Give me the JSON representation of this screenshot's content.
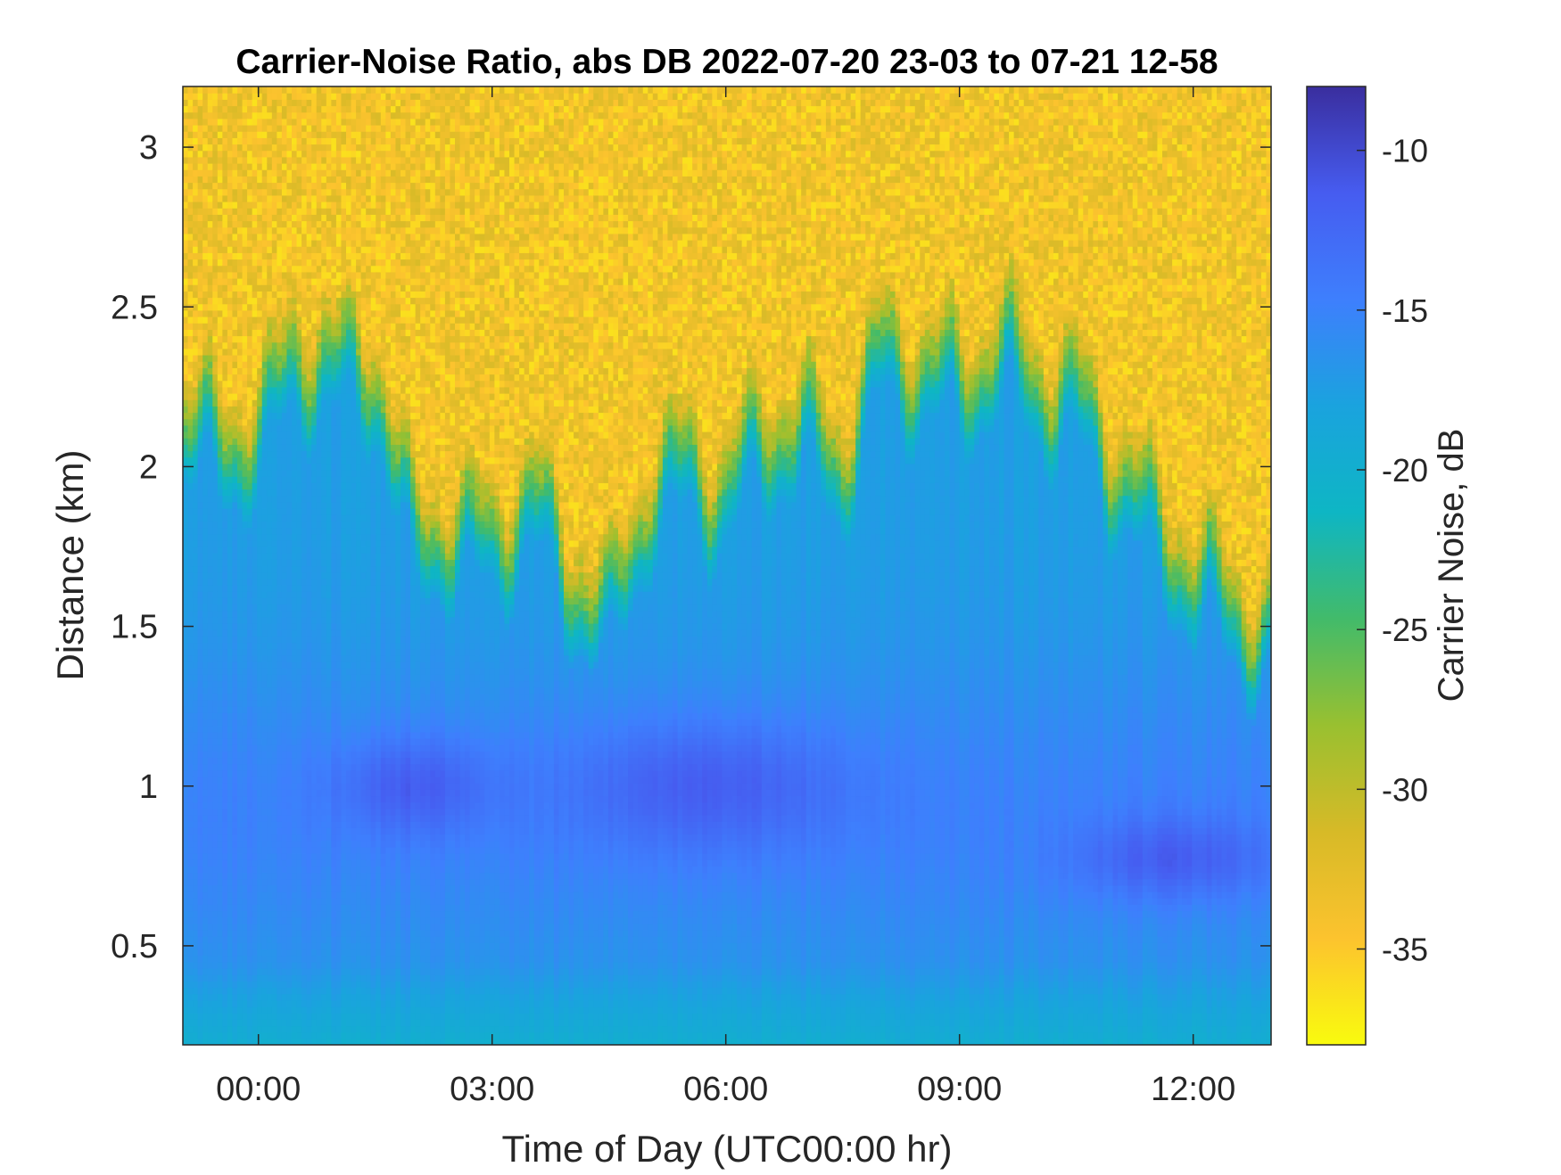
{
  "chart_data": {
    "type": "heatmap",
    "title": "Carrier-Noise Ratio, abs DB 2022-07-20 23-03 to 07-21 12-58",
    "xlabel": "Time of Day (UTC00:00 hr)",
    "ylabel": "Distance (km)",
    "colorbar_label": "Carrier Noise, dB",
    "x_range_hours": [
      -0.97,
      13.0
    ],
    "y_range_km": [
      0.19,
      3.19
    ],
    "color_range_db": [
      -38,
      -8
    ],
    "colormap": "parula (reversed)",
    "x_ticks": [
      {
        "value": 0,
        "label": "00:00"
      },
      {
        "value": 3,
        "label": "03:00"
      },
      {
        "value": 6,
        "label": "06:00"
      },
      {
        "value": 9,
        "label": "09:00"
      },
      {
        "value": 12,
        "label": "12:00"
      }
    ],
    "y_ticks": [
      {
        "value": 0.5,
        "label": "0.5"
      },
      {
        "value": 1,
        "label": "1"
      },
      {
        "value": 1.5,
        "label": "1.5"
      },
      {
        "value": 2,
        "label": "2"
      },
      {
        "value": 2.5,
        "label": "2.5"
      },
      {
        "value": 3,
        "label": "3"
      }
    ],
    "colorbar_ticks": [
      {
        "value": -10,
        "label": "-10"
      },
      {
        "value": -15,
        "label": "-15"
      },
      {
        "value": -20,
        "label": "-20"
      },
      {
        "value": -25,
        "label": "-25"
      },
      {
        "value": -30,
        "label": "-30"
      },
      {
        "value": -35,
        "label": "-35"
      }
    ],
    "colormap_stops": [
      "#f9fb0e",
      "#fcc32e",
      "#d7ba27",
      "#99c030",
      "#42bb6a",
      "#0eb6c4",
      "#1aa3de",
      "#3e7ffd",
      "#465cf0",
      "#3a2e9e"
    ],
    "time_hours": [
      -0.97,
      -0.5,
      0,
      0.5,
      1,
      1.5,
      2,
      2.5,
      3,
      3.5,
      4,
      4.5,
      5,
      5.5,
      6,
      6.5,
      7,
      7.5,
      8,
      8.5,
      9,
      9.5,
      10,
      10.5,
      11,
      11.5,
      12,
      12.5,
      13
    ],
    "boundary_layer_top_km": [
      2.35,
      2.25,
      2.3,
      2.55,
      2.5,
      2.5,
      1.95,
      2.0,
      1.95,
      2.1,
      1.85,
      1.7,
      2.1,
      2.2,
      2.1,
      2.3,
      2.3,
      2.2,
      2.55,
      2.5,
      2.45,
      2.55,
      2.45,
      2.4,
      2.2,
      2.0,
      1.85,
      1.75,
      1.65
    ],
    "strong_signal_bands": [
      {
        "t_hours": [
          1.0,
          3.0
        ],
        "z_km": [
          0.85,
          1.15
        ],
        "db": -10
      },
      {
        "t_hours": [
          4.0,
          7.5
        ],
        "z_km": [
          0.8,
          1.2
        ],
        "db": -10
      },
      {
        "t_hours": [
          10.5,
          13.0
        ],
        "z_km": [
          0.65,
          0.9
        ],
        "db": -10
      }
    ]
  }
}
